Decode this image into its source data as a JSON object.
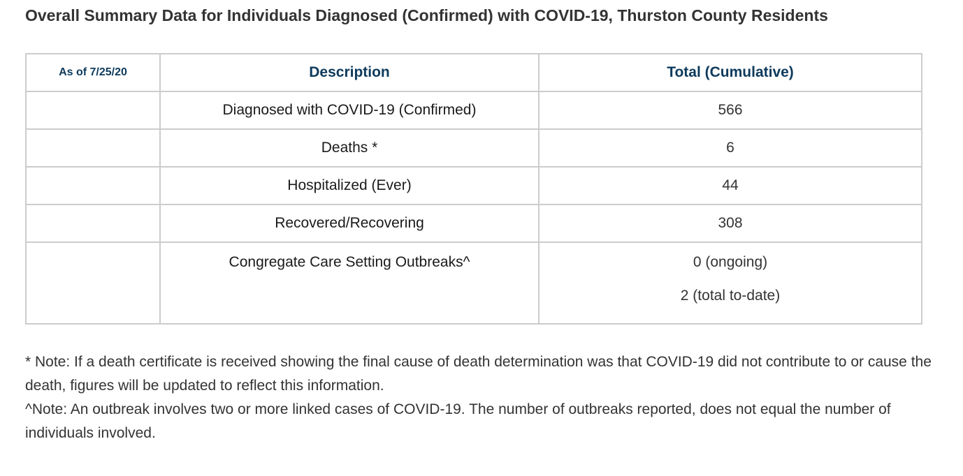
{
  "title": "Overall Summary Data for Individuals Diagnosed (Confirmed) with COVID-19, Thurston County Residents",
  "table": {
    "headers": {
      "as_of": "As of 7/25/20",
      "description": "Description",
      "total": "Total (Cumulative)"
    },
    "rows": [
      {
        "description": "Diagnosed with COVID-19 (Confirmed)",
        "value": "566"
      },
      {
        "description": "Deaths *",
        "value": "6"
      },
      {
        "description": "Hospitalized (Ever)",
        "value": "44"
      },
      {
        "description": "Recovered/Recovering",
        "value": "308"
      },
      {
        "description": "Congregate Care Setting Outbreaks^",
        "values": [
          "0 (ongoing)",
          "2 (total to-date)"
        ]
      }
    ]
  },
  "notes": [
    "* Note: If a death certificate is received showing the final cause of death determination was that COVID-19 did not contribute to or cause the death, figures will be updated to reflect this information.",
    "^Note: An outbreak involves two or more linked cases of COVID-19. The number of outbreaks reported, does not equal the number of individuals involved."
  ],
  "colors": {
    "header_text": "#0d3a5c",
    "border": "#cccccc",
    "body_text": "#1a1a1a"
  }
}
